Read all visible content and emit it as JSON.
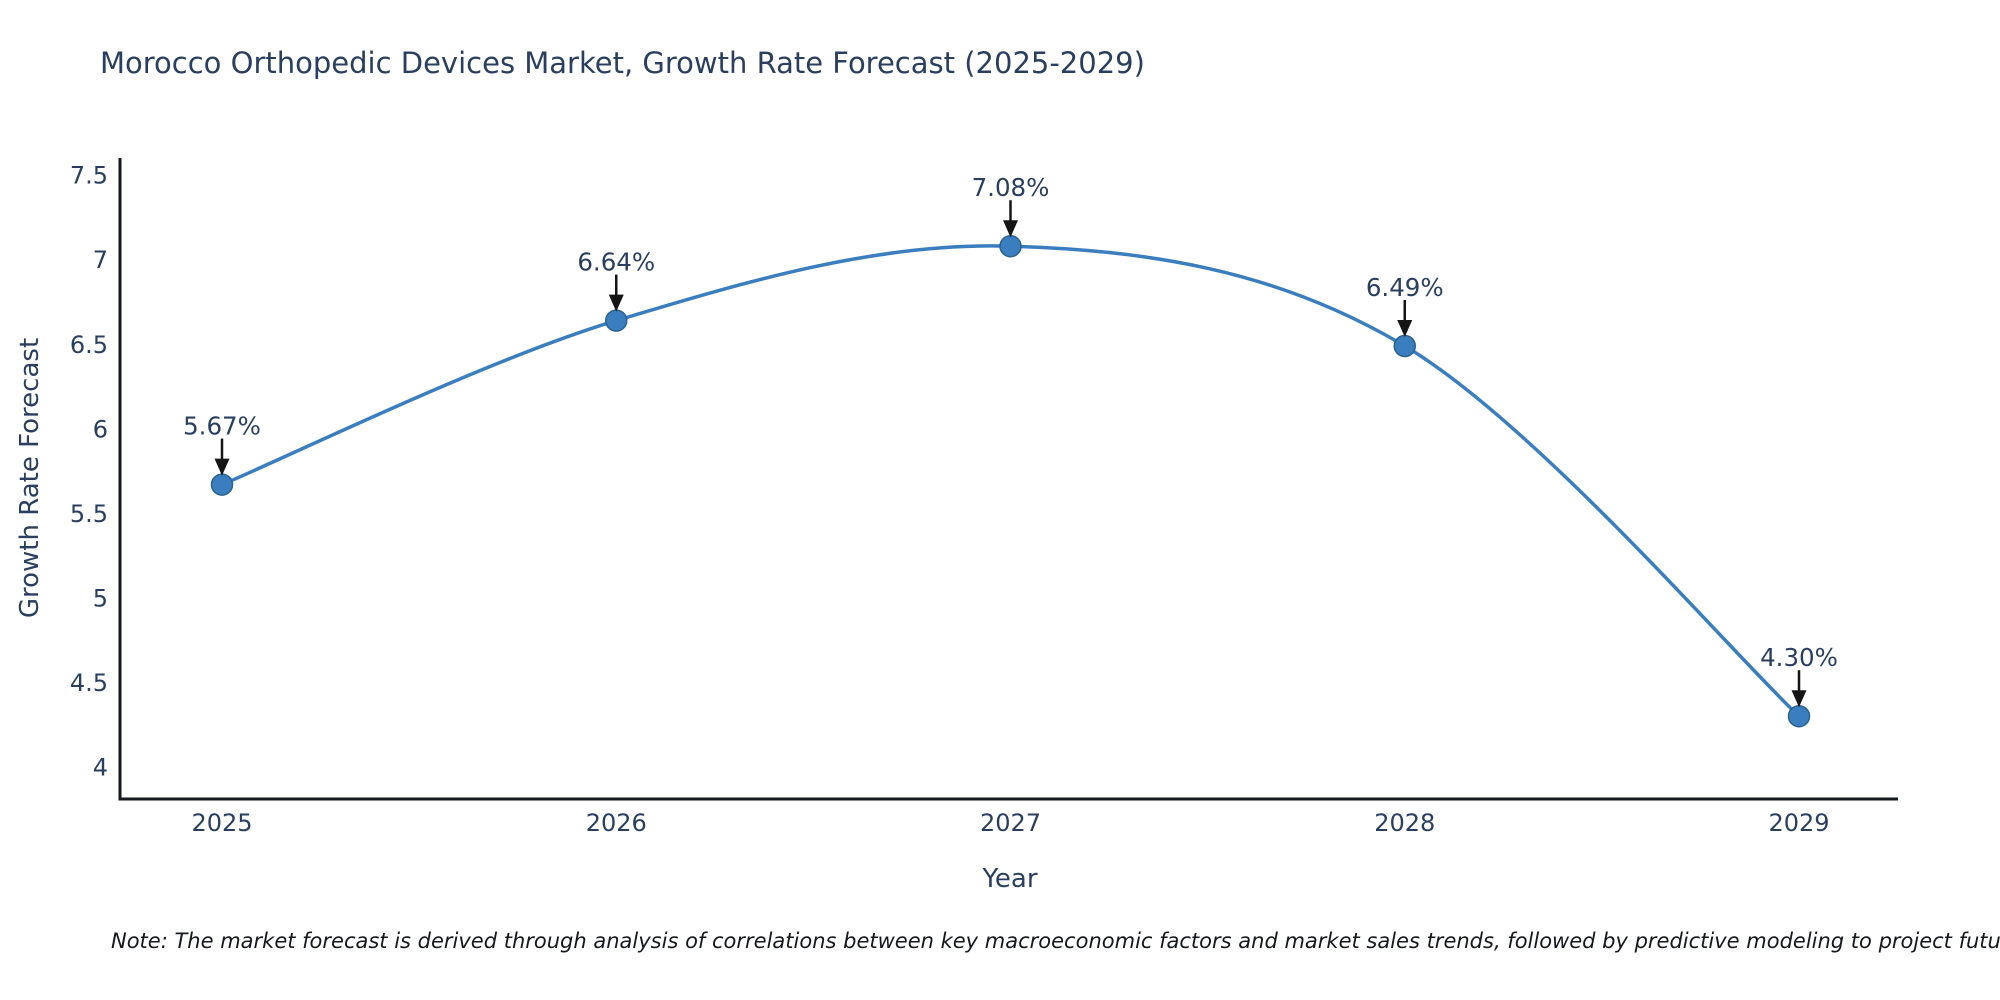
{
  "note": "Note: The market forecast is derived through analysis of correlations between key macroeconomic factors and market sales trends, followed by predictive modeling to project future sales",
  "chart_data": {
    "type": "line",
    "title": "Morocco Orthopedic Devices Market, Growth Rate Forecast (2025-2029)",
    "xlabel": "Year",
    "ylabel": "Growth Rate Forecast",
    "categories": [
      "2025",
      "2026",
      "2027",
      "2028",
      "2029"
    ],
    "values": [
      5.67,
      6.64,
      7.08,
      6.49,
      4.3
    ],
    "point_labels": [
      "5.67%",
      "6.64%",
      "7.08%",
      "6.49%",
      "4.30%"
    ],
    "y_ticks": [
      "7.5",
      "7",
      "6.5",
      "6",
      "5.5",
      "5",
      "4.5",
      "4"
    ],
    "ylim": [
      3.81,
      7.59
    ],
    "line_shape": "spline",
    "grid": false,
    "legend": "none",
    "marker": "circle",
    "annotation_arrows": true,
    "colors": {
      "line": "#3a7ebf",
      "marker": "#3a7ebf",
      "marker_edge": "#2a628f",
      "axis": "#15181c",
      "text": "#2a3f5f",
      "arrow": "#151515",
      "background": "#ffffff"
    }
  }
}
